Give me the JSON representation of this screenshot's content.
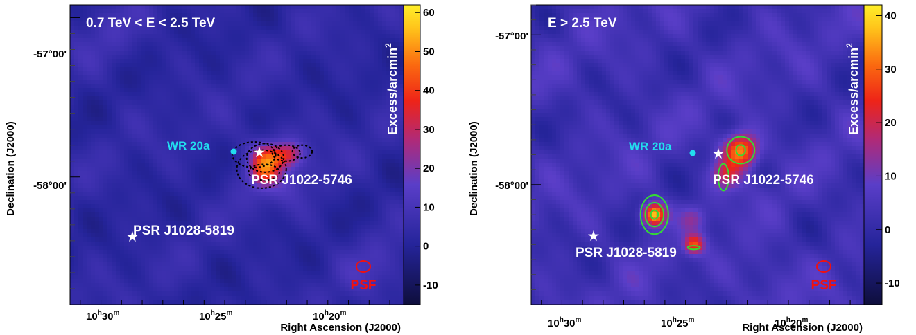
{
  "chart_data": [
    {
      "type": "heatmap",
      "title": "0.7 TeV < E < 2.5 TeV",
      "xlabel": "Right Ascension (J2000)",
      "ylabel": "Declination (J2000)",
      "colorbar": {
        "label": "Excess/arcmin",
        "label_sup": "2",
        "min": -15,
        "max": 62,
        "ticks": [
          -10,
          0,
          10,
          20,
          30,
          40,
          50,
          60
        ]
      },
      "xticks": [
        {
          "h": "10",
          "m": "30"
        },
        {
          "h": "10",
          "m": "25"
        },
        {
          "h": "10",
          "m": "20"
        }
      ],
      "yticks": [
        "-57°00'",
        "-58°00'"
      ],
      "blobs": [
        {
          "ra_h": 10.385,
          "dec": -57.93,
          "sigma": 0.22,
          "peak": 12
        },
        {
          "ra_h": 10.393,
          "dec": -57.97,
          "sigma": 0.08,
          "peak": 22
        },
        {
          "ra_h": 10.392,
          "dec": -57.88,
          "sigma": 0.08,
          "peak": 22
        },
        {
          "ra_h": 10.38,
          "dec": -57.87,
          "sigma": 0.07,
          "peak": 18
        },
        {
          "ra_h": 10.37,
          "dec": -57.85,
          "sigma": 0.07,
          "peak": 14
        },
        {
          "ra_h": 10.3,
          "dec": -58.58,
          "sigma": 0.2,
          "peak": 5
        },
        {
          "ra_h": 10.52,
          "dec": -57.1,
          "sigma": 0.2,
          "peak": 4
        }
      ],
      "contours": [
        {
          "ra_h": 10.401,
          "dec": -57.86,
          "rx": 0.07,
          "ry": 0.08
        },
        {
          "ra_h": 10.393,
          "dec": -57.97,
          "rx": 0.05,
          "ry": 0.05
        },
        {
          "ra_h": 10.392,
          "dec": -57.88,
          "rx": 0.06,
          "ry": 0.09
        },
        {
          "ra_h": 10.375,
          "dec": -57.85,
          "rx": 0.045,
          "ry": 0.05
        },
        {
          "ra_h": 10.362,
          "dec": -57.84,
          "rx": 0.032,
          "ry": 0.04
        },
        {
          "ra_h": 10.395,
          "dec": -57.95,
          "rx": 0.08,
          "ry": 0.12
        }
      ],
      "markers": [
        {
          "label": "WR 20a",
          "kind": "wr",
          "ra_h": 10.403,
          "dec": -57.88
        },
        {
          "label": "PSR J1022-5746",
          "kind": "psr",
          "ra_h": 10.382,
          "dec": -57.89
        },
        {
          "label": "PSR J1028-5819",
          "kind": "psr",
          "ra_h": 10.472,
          "dec": -58.29
        }
      ],
      "psf_label": "PSF"
    },
    {
      "type": "heatmap",
      "title": "E > 2.5 TeV",
      "xlabel": "Right Ascension (J2000)",
      "ylabel": "Declination (J2000)",
      "colorbar": {
        "label": "Excess/arcmin",
        "label_sup": "2",
        "min": -14,
        "max": 42,
        "ticks": [
          -10,
          0,
          10,
          20,
          30,
          40
        ]
      },
      "xticks": [
        {
          "h": "10",
          "m": "30"
        },
        {
          "h": "10",
          "m": "25"
        },
        {
          "h": "10",
          "m": "20"
        }
      ],
      "yticks": [
        "-57°00'",
        "-58°00'"
      ],
      "blobs": [
        {
          "ra_h": 10.38,
          "dec": -57.77,
          "sigma": 0.11,
          "peak": 32
        },
        {
          "ra_h": 10.392,
          "dec": -57.93,
          "sigma": 0.1,
          "peak": 16
        },
        {
          "ra_h": 10.45,
          "dec": -58.2,
          "sigma": 0.075,
          "peak": 38
        },
        {
          "ra_h": 10.418,
          "dec": -58.4,
          "sigma": 0.06,
          "peak": 22
        },
        {
          "ra_h": 10.418,
          "dec": -58.22,
          "sigma": 0.08,
          "peak": 8
        },
        {
          "ra_h": 10.36,
          "dec": -58.6,
          "sigma": 0.2,
          "peak": 4
        }
      ],
      "contours": [
        {
          "ra_h": 10.38,
          "dec": -57.77,
          "rx": 0.045,
          "ry": 0.09
        },
        {
          "ra_h": 10.38,
          "dec": -57.77,
          "rx": 0.015,
          "ry": 0.035
        },
        {
          "ra_h": 10.394,
          "dec": -57.95,
          "rx": 0.017,
          "ry": 0.09
        },
        {
          "ra_h": 10.45,
          "dec": -58.2,
          "rx": 0.045,
          "ry": 0.13
        },
        {
          "ra_h": 10.45,
          "dec": -58.2,
          "rx": 0.03,
          "ry": 0.08
        },
        {
          "ra_h": 10.45,
          "dec": -58.2,
          "rx": 0.012,
          "ry": 0.03
        },
        {
          "ra_h": 10.418,
          "dec": -58.42,
          "rx": 0.02,
          "ry": 0.012
        }
      ],
      "markers": [
        {
          "label": "WR 20a",
          "kind": "wr",
          "ra_h": 10.403,
          "dec": -57.88
        },
        {
          "label": "PSR J1022-5746",
          "kind": "psr",
          "ra_h": 10.382,
          "dec": -57.89
        },
        {
          "label": "PSR J1028-5819",
          "kind": "psr",
          "ra_h": 10.472,
          "dec": -58.29
        }
      ],
      "psf_label": "PSF"
    }
  ]
}
